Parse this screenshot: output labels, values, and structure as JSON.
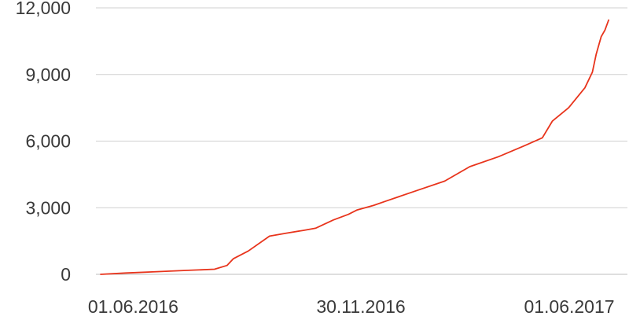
{
  "chart_data": {
    "type": "line",
    "title": "",
    "xlabel": "",
    "ylabel": "",
    "x_type": "date",
    "xlim": [
      "2016-05-06",
      "2017-07-01"
    ],
    "ylim": [
      0,
      12000
    ],
    "grid": true,
    "legend": "none",
    "y_ticks": [
      {
        "value": 0,
        "label": "0"
      },
      {
        "value": 3000,
        "label": "3,000"
      },
      {
        "value": 6000,
        "label": "6,000"
      },
      {
        "value": 9000,
        "label": "9,000"
      },
      {
        "value": 12000,
        "label": "12,000"
      }
    ],
    "x_ticks": [
      {
        "value": "2016-06-01",
        "label": "01.06.2016"
      },
      {
        "value": "2016-11-30",
        "label": "30.11.2016"
      },
      {
        "value": "2017-06-01",
        "label": "01.06.2017"
      }
    ],
    "series": [
      {
        "color": "#e8341c",
        "points": [
          {
            "x": "2016-05-06",
            "y": 0
          },
          {
            "x": "2016-05-26",
            "y": 60
          },
          {
            "x": "2016-06-20",
            "y": 120
          },
          {
            "x": "2016-07-15",
            "y": 180
          },
          {
            "x": "2016-08-05",
            "y": 230
          },
          {
            "x": "2016-08-15",
            "y": 400
          },
          {
            "x": "2016-08-20",
            "y": 700
          },
          {
            "x": "2016-09-01",
            "y": 1050
          },
          {
            "x": "2016-09-18",
            "y": 1720
          },
          {
            "x": "2016-10-01",
            "y": 1850
          },
          {
            "x": "2016-10-15",
            "y": 1980
          },
          {
            "x": "2016-10-25",
            "y": 2080
          },
          {
            "x": "2016-11-08",
            "y": 2450
          },
          {
            "x": "2016-11-20",
            "y": 2700
          },
          {
            "x": "2016-11-27",
            "y": 2900
          },
          {
            "x": "2016-12-10",
            "y": 3100
          },
          {
            "x": "2016-12-20",
            "y": 3300
          },
          {
            "x": "2017-01-15",
            "y": 3800
          },
          {
            "x": "2017-02-05",
            "y": 4200
          },
          {
            "x": "2017-02-25",
            "y": 4850
          },
          {
            "x": "2017-03-20",
            "y": 5300
          },
          {
            "x": "2017-04-10",
            "y": 5800
          },
          {
            "x": "2017-04-24",
            "y": 6150
          },
          {
            "x": "2017-05-02",
            "y": 6900
          },
          {
            "x": "2017-05-15",
            "y": 7500
          },
          {
            "x": "2017-05-28",
            "y": 8400
          },
          {
            "x": "2017-06-03",
            "y": 9100
          },
          {
            "x": "2017-06-06",
            "y": 9900
          },
          {
            "x": "2017-06-10",
            "y": 10700
          },
          {
            "x": "2017-06-13",
            "y": 11000
          },
          {
            "x": "2017-06-16",
            "y": 11450
          }
        ]
      }
    ]
  }
}
